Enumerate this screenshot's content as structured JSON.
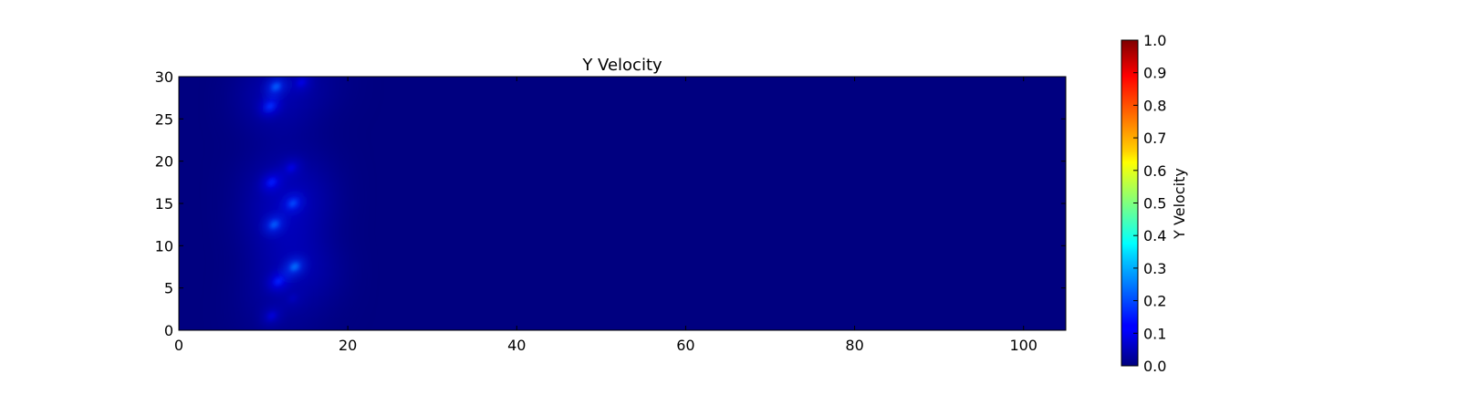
{
  "chart_data": {
    "type": "heatmap",
    "title": "Y Velocity",
    "xlabel": "",
    "ylabel": "",
    "xlim": [
      0,
      105
    ],
    "ylim": [
      0,
      30
    ],
    "xticks": [
      0,
      20,
      40,
      60,
      80,
      100
    ],
    "yticks": [
      0,
      5,
      10,
      15,
      20,
      25,
      30
    ],
    "colormap": "jet",
    "colorbar": {
      "label": "Y Velocity",
      "range": [
        0.0,
        1.0
      ],
      "ticks": [
        "0.0",
        "0.1",
        "0.2",
        "0.3",
        "0.4",
        "0.5",
        "0.6",
        "0.7",
        "0.8",
        "0.9",
        "1.0"
      ]
    },
    "background_value": 0.0,
    "hotspots": [
      {
        "x": 11.5,
        "y": 28.8,
        "value": 0.22
      },
      {
        "x": 10.8,
        "y": 26.5,
        "value": 0.17
      },
      {
        "x": 14.5,
        "y": 29.3,
        "value": 0.1
      },
      {
        "x": 13.3,
        "y": 19.2,
        "value": 0.1
      },
      {
        "x": 11.0,
        "y": 17.5,
        "value": 0.15
      },
      {
        "x": 13.5,
        "y": 15.0,
        "value": 0.2
      },
      {
        "x": 11.3,
        "y": 12.5,
        "value": 0.22
      },
      {
        "x": 13.7,
        "y": 7.5,
        "value": 0.24
      },
      {
        "x": 11.8,
        "y": 5.8,
        "value": 0.16
      },
      {
        "x": 13.5,
        "y": 3.8,
        "value": 0.06
      },
      {
        "x": 11.0,
        "y": 1.7,
        "value": 0.09
      }
    ],
    "grid": false
  }
}
